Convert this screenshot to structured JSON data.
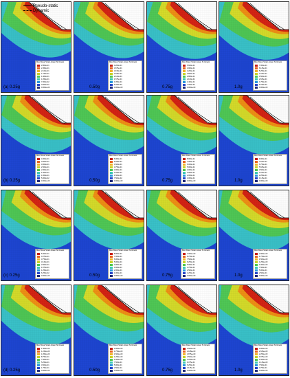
{
  "figure": {
    "legend_title": "Max Shear Strain-Green St Venant",
    "key": [
      {
        "label": "Pseudo-static",
        "color": "#000000"
      },
      {
        "label": "Dynamic",
        "color": "#000000"
      }
    ],
    "colors": {
      "background": "#1e46d2",
      "band_cyan": "#3cc8c8",
      "band_green": "#50c850",
      "band_yellow": "#dcdc28",
      "band_orange": "#f08c14",
      "band_red": "#d21e14",
      "sky": "#ffffff"
    },
    "rows": [
      {
        "row_tag": "(a)",
        "panels": [
          {
            "label": "(a) 0.25g",
            "legend": [
              "2.800e-01",
              "2.450e-01",
              "2.100e-01",
              "1.750e-01",
              "1.400e-01",
              "1.050e-01",
              "7.000e-02",
              "3.500e-02",
              "0.000e+00"
            ]
          },
          {
            "label": "0.50g",
            "legend": [
              "4.200e-01",
              "3.675e-01",
              "3.150e-01",
              "2.625e-01",
              "2.100e-01",
              "1.575e-01",
              "1.050e-01",
              "5.250e-02",
              "0.000e+00"
            ]
          },
          {
            "label": "0.75g",
            "legend": [
              "5.600e-01",
              "4.900e-01",
              "4.200e-01",
              "3.500e-01",
              "2.800e-01",
              "2.100e-01",
              "1.400e-01",
              "7.000e-02",
              "0.000e+00"
            ]
          },
          {
            "label": "1.0g",
            "legend": [
              "7.000e-01",
              "6.125e-01",
              "5.250e-01",
              "4.375e-01",
              "3.500e-01",
              "2.625e-01",
              "1.750e-01",
              "8.750e-02",
              "0.000e+00"
            ]
          }
        ]
      },
      {
        "row_tag": "(b)",
        "panels": [
          {
            "label": "(b) 0.25g",
            "legend": [
              "4.000e-01",
              "3.500e-01",
              "3.000e-01",
              "2.500e-01",
              "2.000e-01",
              "1.500e-01",
              "1.000e-01",
              "5.000e-02",
              "0.000e+00"
            ]
          },
          {
            "label": "0.50g",
            "legend": [
              "6.000e-01",
              "5.250e-01",
              "4.500e-01",
              "3.750e-01",
              "3.000e-01",
              "2.250e-01",
              "1.500e-01",
              "7.500e-02",
              "0.000e+00"
            ]
          },
          {
            "label": "0.75g",
            "legend": [
              "8.000e-01",
              "7.000e-01",
              "6.000e-01",
              "5.000e-01",
              "4.000e-01",
              "3.000e-01",
              "2.000e-01",
              "1.000e-01",
              "0.000e+00"
            ]
          },
          {
            "label": "1.0g",
            "legend": [
              "9.000e-01",
              "7.875e-01",
              "6.750e-01",
              "5.625e-01",
              "4.500e-01",
              "3.375e-01",
              "2.250e-01",
              "1.125e-01",
              "0.000e+00"
            ]
          }
        ]
      },
      {
        "row_tag": "(c)",
        "panels": [
          {
            "label": "(c) 0.25g",
            "legend": [
              "5.000e-01",
              "4.375e-01",
              "3.750e-01",
              "3.125e-01",
              "2.500e-01",
              "1.875e-01",
              "1.250e-01",
              "6.250e-02",
              "0.000e+00"
            ]
          },
          {
            "label": "0.50g",
            "legend": [
              "8.000e-01",
              "7.000e-01",
              "6.000e-01",
              "5.000e-01",
              "4.000e-01",
              "3.000e-01",
              "2.000e-01",
              "1.000e-01",
              "0.000e+00"
            ]
          },
          {
            "label": "0.75g",
            "legend": [
              "1.000e+00",
              "8.750e-01",
              "7.500e-01",
              "6.250e-01",
              "5.000e-01",
              "3.750e-01",
              "2.500e-01",
              "1.250e-01",
              "0.000e+00"
            ]
          },
          {
            "label": "1.0g",
            "legend": [
              "2.000e+00",
              "1.750e+00",
              "1.500e+00",
              "1.250e+00",
              "1.000e+00",
              "7.500e-01",
              "5.000e-01",
              "2.500e-01",
              "0.000e+00"
            ]
          }
        ]
      },
      {
        "row_tag": "(d)",
        "panels": [
          {
            "label": "(d) 0.25g",
            "legend": [
              "1.400e+00",
              "1.225e+00",
              "1.050e+00",
              "8.750e-01",
              "7.000e-01",
              "5.250e-01",
              "3.500e-01",
              "1.750e-01",
              "0.000e+00"
            ]
          },
          {
            "label": "0.50g",
            "legend": [
              "2.000e+00",
              "1.750e+00",
              "1.500e+00",
              "1.250e+00",
              "1.000e+00",
              "7.500e-01",
              "5.000e-01",
              "2.500e-01",
              "0.000e+00"
            ]
          },
          {
            "label": "0.75g",
            "legend": [
              "2.500e+00",
              "2.188e+00",
              "1.875e+00",
              "1.563e+00",
              "1.250e+00",
              "9.375e-01",
              "6.250e-01",
              "3.125e-01",
              "0.000e+00"
            ]
          },
          {
            "label": "1.0g",
            "legend": [
              "3.000e+00",
              "2.625e+00",
              "2.250e+00",
              "1.875e+00",
              "1.500e+00",
              "1.125e+00",
              "7.500e-01",
              "3.750e-01",
              "0.000e+00"
            ]
          }
        ]
      }
    ]
  }
}
